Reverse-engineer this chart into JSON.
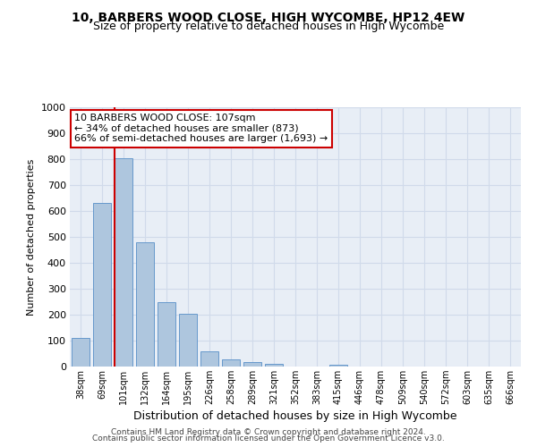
{
  "title": "10, BARBERS WOOD CLOSE, HIGH WYCOMBE, HP12 4EW",
  "subtitle": "Size of property relative to detached houses in High Wycombe",
  "xlabel": "Distribution of detached houses by size in High Wycombe",
  "ylabel": "Number of detached properties",
  "categories": [
    "38sqm",
    "69sqm",
    "101sqm",
    "132sqm",
    "164sqm",
    "195sqm",
    "226sqm",
    "258sqm",
    "289sqm",
    "321sqm",
    "352sqm",
    "383sqm",
    "415sqm",
    "446sqm",
    "478sqm",
    "509sqm",
    "540sqm",
    "572sqm",
    "603sqm",
    "635sqm",
    "666sqm"
  ],
  "values": [
    110,
    630,
    805,
    480,
    250,
    205,
    60,
    28,
    18,
    12,
    0,
    0,
    8,
    0,
    0,
    0,
    0,
    0,
    0,
    0,
    0
  ],
  "bar_color": "#aec6de",
  "bar_edge_color": "#6699cc",
  "grid_color": "#d0daea",
  "background_color": "#e8eef6",
  "vline_color": "#cc0000",
  "vline_x_index": 2,
  "annotation_line1": "10 BARBERS WOOD CLOSE: 107sqm",
  "annotation_line2": "← 34% of detached houses are smaller (873)",
  "annotation_line3": "66% of semi-detached houses are larger (1,693) →",
  "annotation_box_facecolor": "#ffffff",
  "annotation_box_edgecolor": "#cc0000",
  "ylim": [
    0,
    1000
  ],
  "yticks": [
    0,
    100,
    200,
    300,
    400,
    500,
    600,
    700,
    800,
    900,
    1000
  ],
  "footer1": "Contains HM Land Registry data © Crown copyright and database right 2024.",
  "footer2": "Contains public sector information licensed under the Open Government Licence v3.0.",
  "title_fontsize": 10,
  "subtitle_fontsize": 9,
  "ylabel_fontsize": 8,
  "xlabel_fontsize": 9
}
